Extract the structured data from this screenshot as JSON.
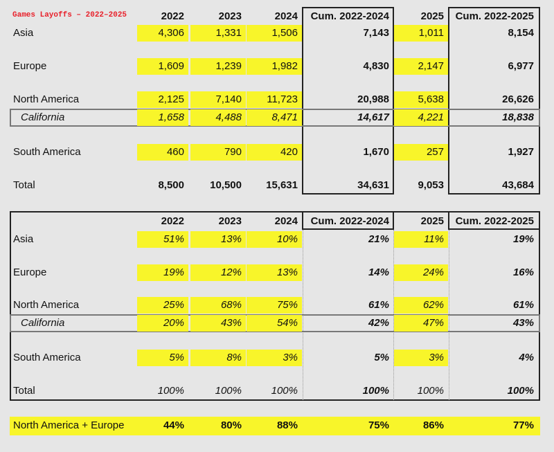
{
  "title": "Games Layoffs – 2022–2025",
  "headers": [
    "2022",
    "2023",
    "2024",
    "Cum. 2022-2024",
    "2025",
    "Cum. 2022-2025"
  ],
  "counts": {
    "rows": [
      {
        "label": "Asia",
        "values": [
          "4,306",
          "1,331",
          "1,506",
          "7,143",
          "1,011",
          "8,154"
        ]
      },
      {
        "label": "Europe",
        "values": [
          "1,609",
          "1,239",
          "1,982",
          "4,830",
          "2,147",
          "6,977"
        ]
      },
      {
        "label": "North America",
        "values": [
          "2,125",
          "7,140",
          "11,723",
          "20,988",
          "5,638",
          "26,626"
        ]
      },
      {
        "label": "California",
        "values": [
          "1,658",
          "4,488",
          "8,471",
          "14,617",
          "4,221",
          "18,838"
        ]
      },
      {
        "label": "South America",
        "values": [
          "460",
          "790",
          "420",
          "1,670",
          "257",
          "1,927"
        ]
      },
      {
        "label": "Total",
        "values": [
          "8,500",
          "10,500",
          "15,631",
          "34,631",
          "9,053",
          "43,684"
        ]
      }
    ]
  },
  "shares": {
    "rows": [
      {
        "label": "Asia",
        "values": [
          "51%",
          "13%",
          "10%",
          "21%",
          "11%",
          "19%"
        ]
      },
      {
        "label": "Europe",
        "values": [
          "19%",
          "12%",
          "13%",
          "14%",
          "24%",
          "16%"
        ]
      },
      {
        "label": "North America",
        "values": [
          "25%",
          "68%",
          "75%",
          "61%",
          "62%",
          "61%"
        ]
      },
      {
        "label": "California",
        "values": [
          "20%",
          "43%",
          "54%",
          "42%",
          "47%",
          "43%"
        ]
      },
      {
        "label": "South America",
        "values": [
          "5%",
          "8%",
          "3%",
          "5%",
          "3%",
          "4%"
        ]
      },
      {
        "label": "Total",
        "values": [
          "100%",
          "100%",
          "100%",
          "100%",
          "100%",
          "100%"
        ]
      }
    ]
  },
  "combined": {
    "label": "North America + Europe",
    "values": [
      "44%",
      "80%",
      "88%",
      "75%",
      "86%",
      "77%"
    ]
  }
}
